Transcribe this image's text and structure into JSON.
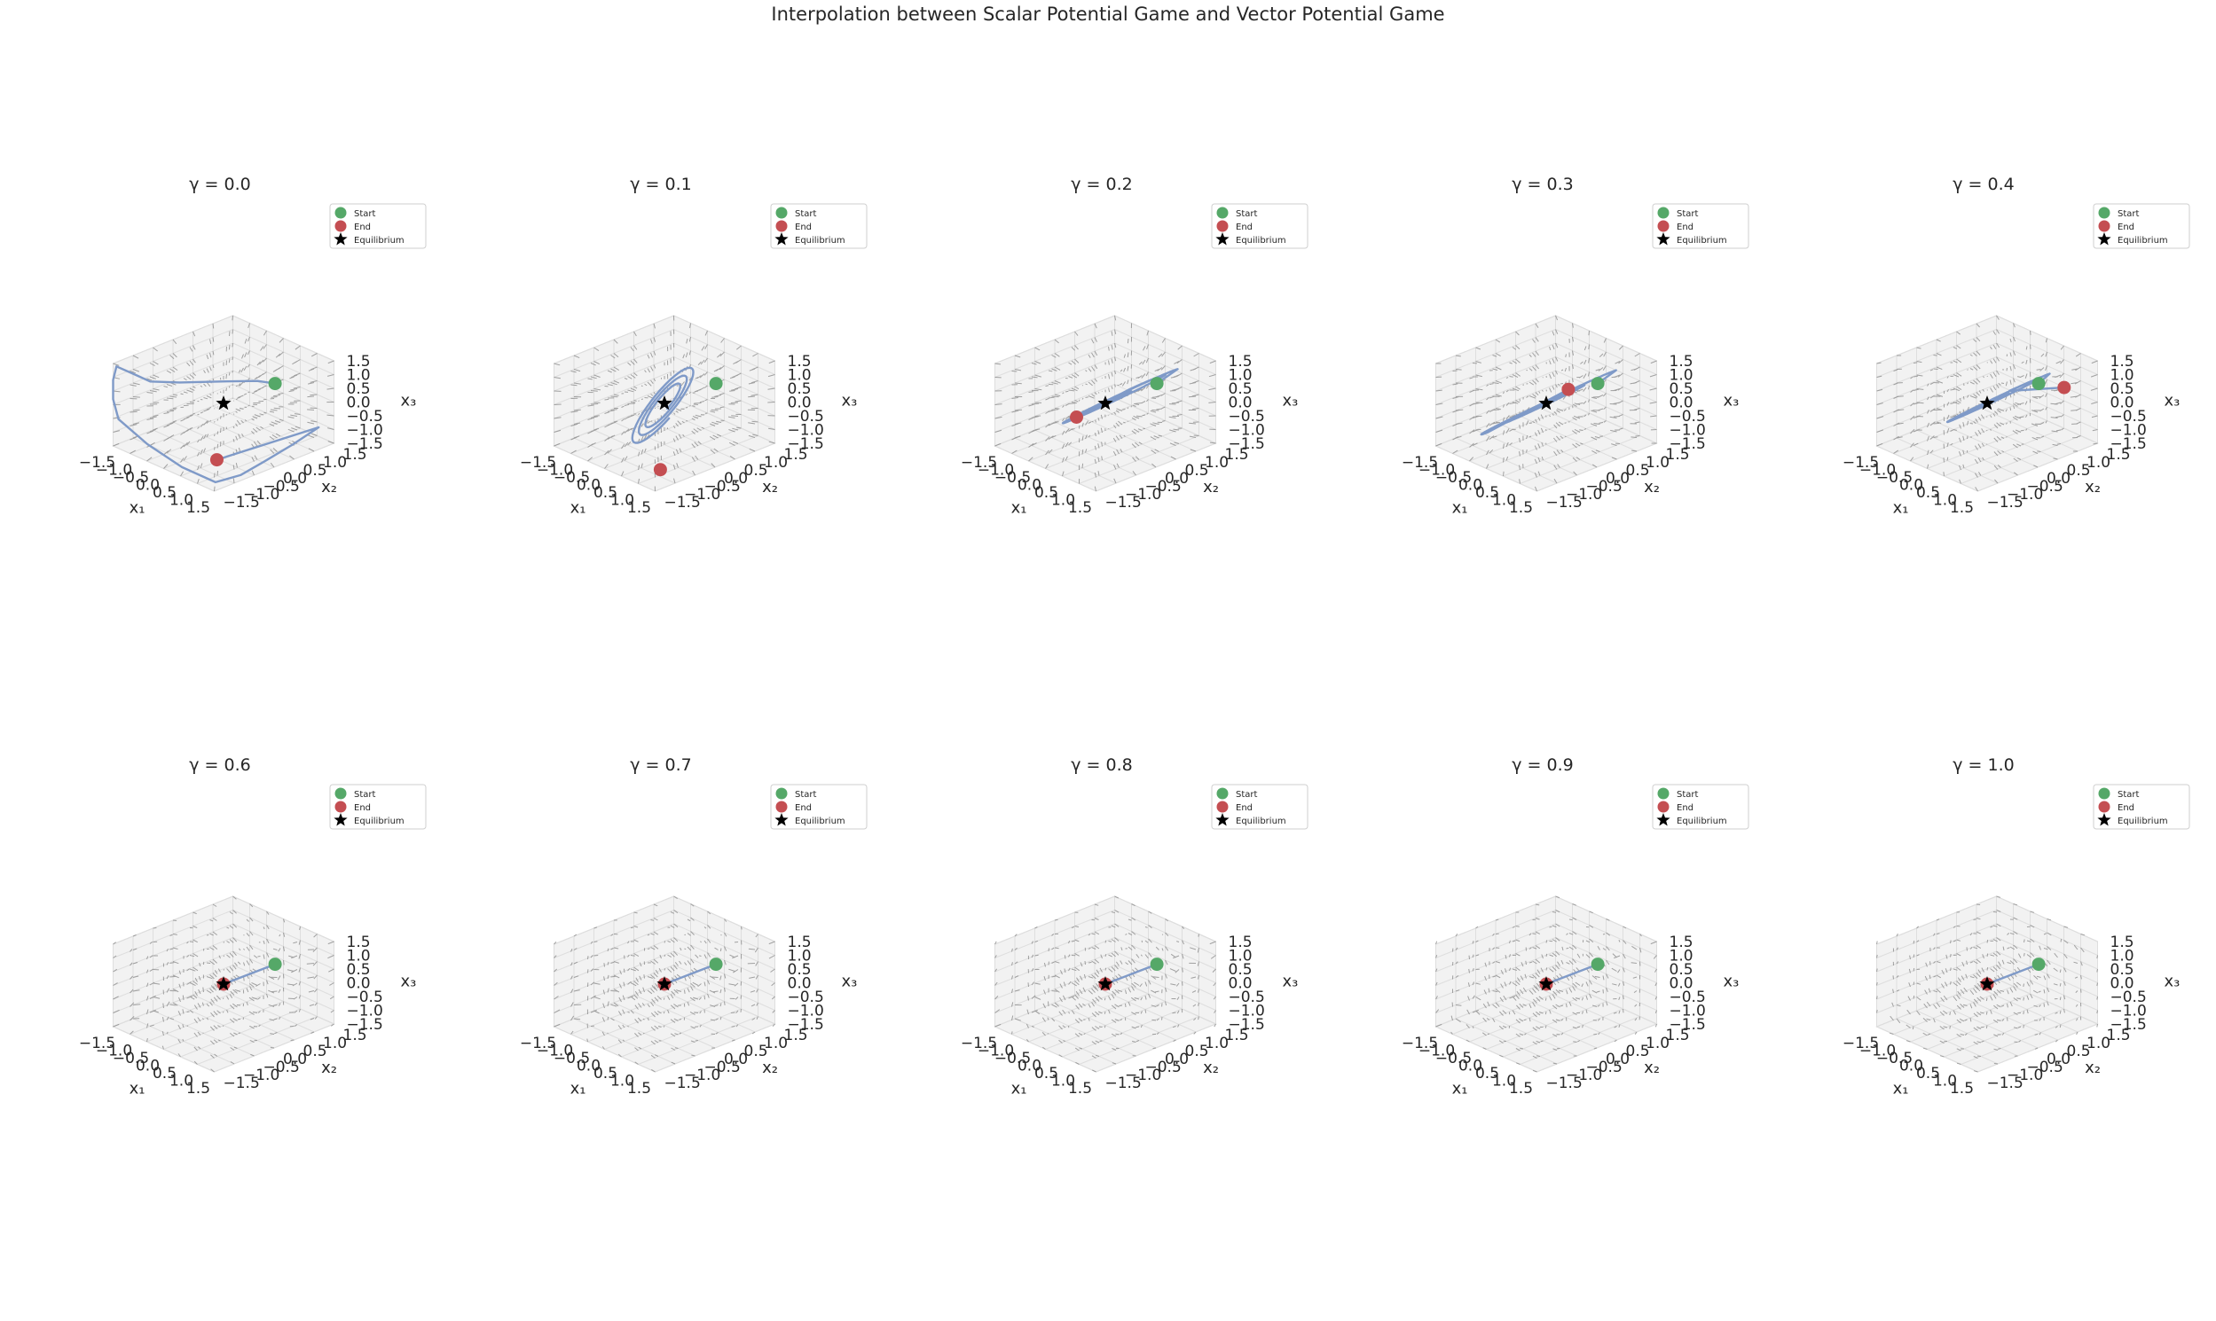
{
  "figure": {
    "title": "Interpolation between Scalar Potential Game and Vector Potential Game"
  },
  "legend_labels": {
    "start": "Start",
    "end": "End",
    "equilibrium": "Equilibrium"
  },
  "axis_labels": {
    "x1": "x₁",
    "x2": "x₂",
    "x3": "x₃"
  },
  "colors": {
    "trajectory": "#7f9ac8",
    "start": "#55a868",
    "end": "#c44e52",
    "equilibrium": "#000000",
    "quiver": "#8c8c8c",
    "pane": "#f2f2f2",
    "grid": "#dedede"
  },
  "chart_data": [
    {
      "type": "line3d",
      "title": "γ = 0.0",
      "gamma": 0.0,
      "xlim": [
        -1.5,
        1.5
      ],
      "ylim": [
        -1.5,
        1.5
      ],
      "zlim": [
        -1.5,
        1.5
      ],
      "ticks": [
        -1.5,
        -1.0,
        -0.5,
        0.0,
        0.5,
        1.0,
        1.5
      ],
      "start": [
        0.7,
        0.7,
        0.7
      ],
      "end": [
        1.4,
        -1.35,
        -0.5
      ],
      "equilibrium": [
        0,
        0,
        0
      ],
      "trajectory": [
        [
          0.7,
          0.7,
          0.7
        ],
        [
          0.65,
          0.3,
          1.0
        ],
        [
          0.4,
          -0.4,
          1.25
        ],
        [
          0.0,
          -1.1,
          1.4
        ],
        [
          -0.4,
          -1.5,
          1.45
        ],
        [
          -0.8,
          -1.5,
          1.45
        ],
        [
          -1.4,
          -1.5,
          1.45
        ],
        [
          -1.5,
          -1.5,
          0.9
        ],
        [
          -1.5,
          -1.5,
          0.2
        ],
        [
          -1.4,
          -1.45,
          -0.5
        ],
        [
          -0.6,
          -1.4,
          -1.0
        ],
        [
          0.4,
          -1.38,
          -1.3
        ],
        [
          1.3,
          -1.3,
          -1.4
        ],
        [
          1.45,
          -0.8,
          -1.35
        ],
        [
          1.45,
          -0.2,
          -1.2
        ],
        [
          1.45,
          0.5,
          -1.0
        ],
        [
          1.4,
          1.2,
          -0.8
        ],
        [
          1.4,
          -1.35,
          -0.5
        ]
      ]
    },
    {
      "type": "line3d",
      "title": "γ = 0.1",
      "gamma": 0.1,
      "xlim": [
        -1.5,
        1.5
      ],
      "ylim": [
        -1.5,
        1.5
      ],
      "zlim": [
        -1.5,
        1.5
      ],
      "ticks": [
        -1.5,
        -1.0,
        -0.5,
        0.0,
        0.5,
        1.0,
        1.5
      ],
      "start": [
        0.7,
        0.7,
        0.7
      ],
      "end": [
        1.3,
        -1.2,
        -1.0
      ],
      "equilibrium": [
        0,
        0,
        0
      ],
      "spiral": {
        "radius_start": 0.55,
        "radius_end": 1.3,
        "turns": 3.0
      },
      "trajectory": []
    },
    {
      "type": "line3d",
      "title": "γ = 0.2",
      "gamma": 0.2,
      "xlim": [
        -1.5,
        1.5
      ],
      "ylim": [
        -1.5,
        1.5
      ],
      "zlim": [
        -1.5,
        1.5
      ],
      "ticks": [
        -1.5,
        -1.0,
        -0.5,
        0.0,
        0.5,
        1.0,
        1.5
      ],
      "start": [
        0.7,
        0.7,
        0.7
      ],
      "end": [
        -0.5,
        -0.3,
        -0.6
      ],
      "equilibrium": [
        0,
        0,
        0
      ],
      "ellipse": {
        "a": 1.5,
        "b": 0.55,
        "turns": 2.2,
        "shrink": 0.35
      },
      "trajectory": []
    },
    {
      "type": "line3d",
      "title": "γ = 0.3",
      "gamma": 0.3,
      "xlim": [
        -1.5,
        1.5
      ],
      "ylim": [
        -1.5,
        1.5
      ],
      "zlim": [
        -1.5,
        1.5
      ],
      "ticks": [
        -1.5,
        -1.0,
        -0.5,
        0.0,
        0.5,
        1.0,
        1.5
      ],
      "start": [
        0.7,
        0.7,
        0.7
      ],
      "end": [
        0.3,
        0.3,
        0.5
      ],
      "equilibrium": [
        0,
        0,
        0
      ],
      "ellipse": {
        "a": 1.45,
        "b": 0.45,
        "turns": 2.6,
        "shrink": 0.3
      },
      "trajectory": []
    },
    {
      "type": "line3d",
      "title": "γ = 0.4",
      "gamma": 0.4,
      "xlim": [
        -1.5,
        1.5
      ],
      "ylim": [
        -1.5,
        1.5
      ],
      "zlim": [
        -1.5,
        1.5
      ],
      "ticks": [
        -1.5,
        -1.0,
        -0.5,
        0.0,
        0.5,
        1.0,
        1.5
      ],
      "start": [
        0.7,
        0.7,
        0.7
      ],
      "end": [
        1.1,
        1.0,
        0.6
      ],
      "equilibrium": [
        0,
        0,
        0
      ],
      "ellipse": {
        "a": 1.3,
        "b": 0.4,
        "turns": 3.2,
        "shrink": 0.2
      },
      "trajectory": []
    },
    {
      "type": "line3d",
      "title": "γ = 0.6",
      "gamma": 0.6,
      "xlim": [
        -1.5,
        1.5
      ],
      "ylim": [
        -1.5,
        1.5
      ],
      "zlim": [
        -1.5,
        1.5
      ],
      "ticks": [
        -1.5,
        -1.0,
        -0.5,
        0.0,
        0.5,
        1.0,
        1.5
      ],
      "start": [
        0.7,
        0.7,
        0.7
      ],
      "end": [
        0,
        0,
        0
      ],
      "equilibrium": [
        0,
        0,
        0
      ],
      "trajectory": [
        [
          0.7,
          0.7,
          0.7
        ],
        [
          0.35,
          0.35,
          0.35
        ],
        [
          0.1,
          0.1,
          0.1
        ],
        [
          -0.05,
          0.05,
          -0.05
        ],
        [
          0,
          0,
          0
        ]
      ]
    },
    {
      "type": "line3d",
      "title": "γ = 0.7",
      "gamma": 0.7,
      "xlim": [
        -1.5,
        1.5
      ],
      "ylim": [
        -1.5,
        1.5
      ],
      "zlim": [
        -1.5,
        1.5
      ],
      "ticks": [
        -1.5,
        -1.0,
        -0.5,
        0.0,
        0.5,
        1.0,
        1.5
      ],
      "start": [
        0.7,
        0.7,
        0.7
      ],
      "end": [
        0,
        0,
        0
      ],
      "equilibrium": [
        0,
        0,
        0
      ],
      "trajectory": [
        [
          0.7,
          0.7,
          0.7
        ],
        [
          0.35,
          0.35,
          0.35
        ],
        [
          0.1,
          0.1,
          0.1
        ],
        [
          -0.05,
          0.05,
          -0.05
        ],
        [
          0,
          0,
          0
        ]
      ]
    },
    {
      "type": "line3d",
      "title": "γ = 0.8",
      "gamma": 0.8,
      "xlim": [
        -1.5,
        1.5
      ],
      "ylim": [
        -1.5,
        1.5
      ],
      "zlim": [
        -1.5,
        1.5
      ],
      "ticks": [
        -1.5,
        -1.0,
        -0.5,
        0.0,
        0.5,
        1.0,
        1.5
      ],
      "start": [
        0.7,
        0.7,
        0.7
      ],
      "end": [
        0,
        0,
        0
      ],
      "equilibrium": [
        0,
        0,
        0
      ],
      "trajectory": [
        [
          0.7,
          0.7,
          0.7
        ],
        [
          0.35,
          0.35,
          0.35
        ],
        [
          0.1,
          0.1,
          0.1
        ],
        [
          -0.05,
          0.05,
          -0.05
        ],
        [
          0,
          0,
          0
        ]
      ]
    },
    {
      "type": "line3d",
      "title": "γ = 0.9",
      "gamma": 0.9,
      "xlim": [
        -1.5,
        1.5
      ],
      "ylim": [
        -1.5,
        1.5
      ],
      "zlim": [
        -1.5,
        1.5
      ],
      "ticks": [
        -1.5,
        -1.0,
        -0.5,
        0.0,
        0.5,
        1.0,
        1.5
      ],
      "start": [
        0.7,
        0.7,
        0.7
      ],
      "end": [
        0,
        0,
        0
      ],
      "equilibrium": [
        0,
        0,
        0
      ],
      "trajectory": [
        [
          0.7,
          0.7,
          0.7
        ],
        [
          0.35,
          0.35,
          0.35
        ],
        [
          0.1,
          0.1,
          0.1
        ],
        [
          -0.05,
          0.05,
          -0.05
        ],
        [
          0,
          0,
          0
        ]
      ]
    },
    {
      "type": "line3d",
      "title": "γ = 1.0",
      "gamma": 1.0,
      "xlim": [
        -1.5,
        1.5
      ],
      "ylim": [
        -1.5,
        1.5
      ],
      "zlim": [
        -1.5,
        1.5
      ],
      "ticks": [
        -1.5,
        -1.0,
        -0.5,
        0.0,
        0.5,
        1.0,
        1.5
      ],
      "start": [
        0.7,
        0.7,
        0.7
      ],
      "end": [
        0,
        0,
        0
      ],
      "equilibrium": [
        0,
        0,
        0
      ],
      "trajectory": [
        [
          0.7,
          0.7,
          0.7
        ],
        [
          0.35,
          0.35,
          0.35
        ],
        [
          0.1,
          0.1,
          0.1
        ],
        [
          -0.05,
          0.05,
          -0.05
        ],
        [
          0,
          0,
          0
        ]
      ]
    }
  ]
}
